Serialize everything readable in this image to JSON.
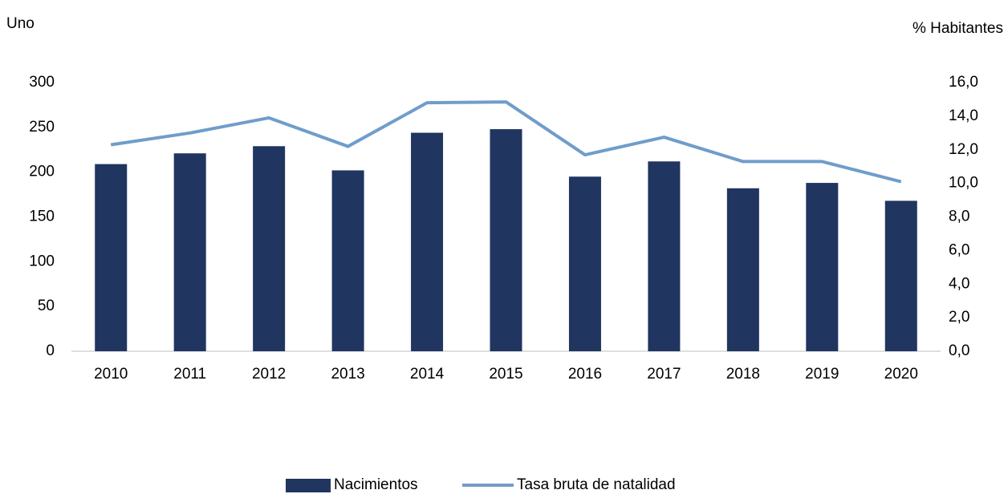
{
  "chart_data": {
    "type": "bar_line",
    "y_label": "Uno",
    "y2_label": "% Habitantes",
    "categories": [
      "2010",
      "2011",
      "2012",
      "2013",
      "2014",
      "2015",
      "2016",
      "2017",
      "2018",
      "2019",
      "2020"
    ],
    "series": [
      {
        "name": "Nacimientos",
        "type": "bar",
        "color": "#203560",
        "values": [
          209,
          221,
          229,
          202,
          244,
          248,
          195,
          212,
          182,
          188,
          168
        ]
      },
      {
        "name": "Tasa bruta de natalidad",
        "type": "line",
        "axis": "y2",
        "color": "#6f9dcb",
        "values": [
          12.3,
          13.0,
          13.9,
          12.2,
          14.8,
          14.85,
          11.7,
          12.75,
          11.3,
          11.3,
          10.1
        ]
      }
    ],
    "ylim": [
      0,
      300
    ],
    "yticks": [
      0,
      50,
      100,
      150,
      200,
      250,
      300
    ],
    "y2lim": [
      0,
      16
    ],
    "y2ticks": [
      {
        "value": 0,
        "label": "0,0"
      },
      {
        "value": 2,
        "label": "2,0"
      },
      {
        "value": 4,
        "label": "4,0"
      },
      {
        "value": 6,
        "label": "6,0"
      },
      {
        "value": 8,
        "label": "8,0"
      },
      {
        "value": 10,
        "label": "10,0"
      },
      {
        "value": 12,
        "label": "12,0"
      },
      {
        "value": 14,
        "label": "14,0"
      },
      {
        "value": 16,
        "label": "16,0"
      }
    ],
    "grid": false,
    "legend": "bottom"
  }
}
